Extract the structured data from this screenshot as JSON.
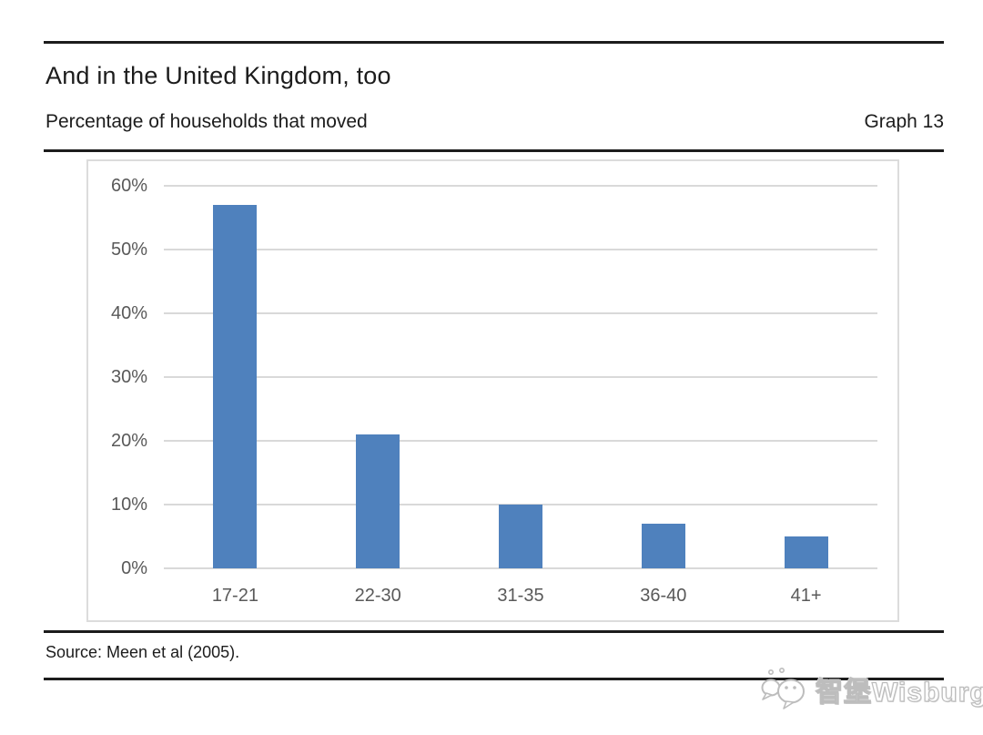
{
  "header": {
    "title": "And in the United Kingdom, too",
    "subtitle": "Percentage of households that moved",
    "graph_label": "Graph 13"
  },
  "chart_data": {
    "type": "bar",
    "title": "Percentage of households that moved",
    "categories": [
      "17-21",
      "22-30",
      "31-35",
      "36-40",
      "41+"
    ],
    "values": [
      57,
      21,
      10,
      7,
      5
    ],
    "xlabel": "",
    "ylabel": "",
    "ylim": [
      0,
      60
    ],
    "y_tick_step": 10,
    "y_tick_labels": [
      "60%",
      "50%",
      "40%",
      "30%",
      "20%",
      "10%",
      "0%"
    ],
    "grid": true,
    "legend": false,
    "bar_color": "#4f81bd",
    "gridline_color": "#d9d9d9",
    "axis_text_color": "#595959"
  },
  "footer": {
    "source": "Source: Meen et al (2005)."
  },
  "watermark": {
    "icon": "wechat-bubbles-icon",
    "text": "智堡Wisburg"
  }
}
